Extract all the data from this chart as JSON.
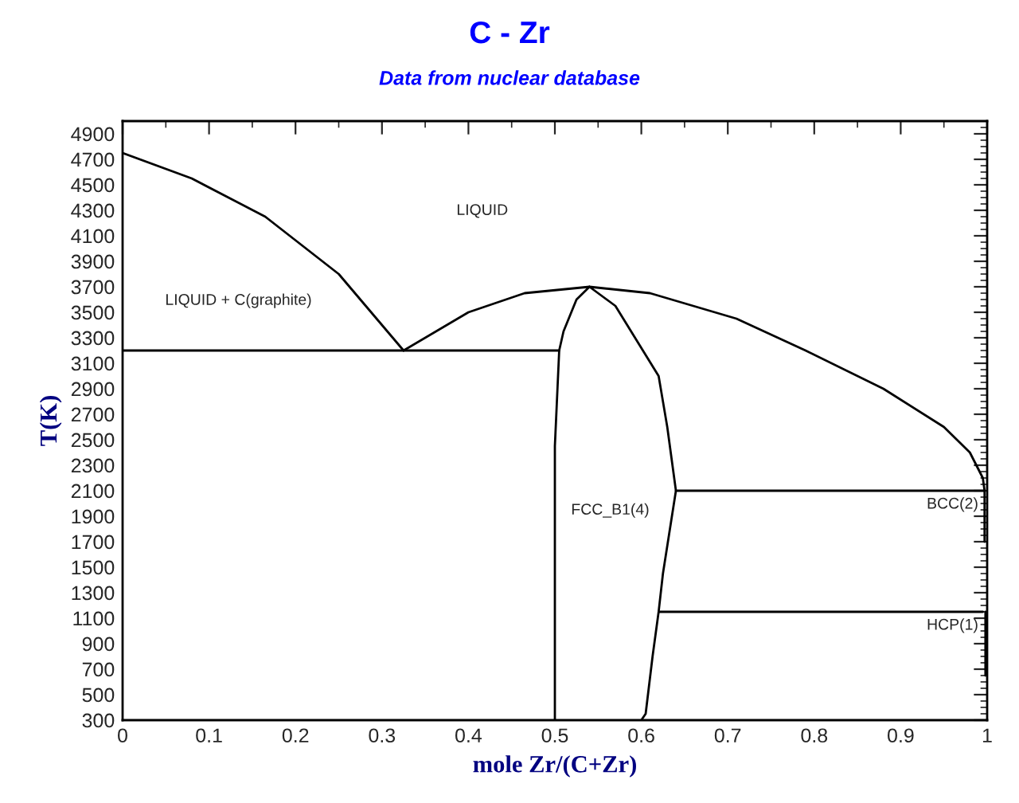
{
  "chart_data": {
    "type": "line",
    "title": "C - Zr",
    "subtitle": "Data from nuclear database",
    "xlabel": "mole Zr/(C+Zr)",
    "ylabel": "T(K)",
    "xlim": [
      0,
      1
    ],
    "ylim": [
      300,
      5000
    ],
    "xticks": [
      0,
      0.1,
      0.2,
      0.3,
      0.4,
      0.5,
      0.6,
      0.7,
      0.8,
      0.9,
      1
    ],
    "yticks": [
      300,
      500,
      700,
      900,
      1100,
      1300,
      1500,
      1700,
      1900,
      2100,
      2300,
      2500,
      2700,
      2900,
      3100,
      3300,
      3500,
      3700,
      3900,
      4100,
      4300,
      4500,
      4700,
      4900
    ],
    "grid": false,
    "legend": false,
    "marker": "none",
    "line_style": "solid",
    "series": [
      {
        "color": "#000000",
        "x": [
          0,
          0.08,
          0.165,
          0.25,
          0.325
        ],
        "values": [
          4750,
          4550,
          4250,
          3800,
          3200
        ]
      },
      {
        "color": "#000000",
        "x": [
          0.325,
          0.4,
          0.465,
          0.54,
          0.61,
          0.71,
          0.79,
          0.88,
          0.95,
          0.98,
          0.995,
          0.997,
          0.997
        ],
        "values": [
          3200,
          3500,
          3650,
          3700,
          3650,
          3450,
          3200,
          2900,
          2600,
          2400,
          2200,
          2100,
          1700
        ]
      },
      {
        "color": "#000000",
        "x": [
          0,
          0.505
        ],
        "values": [
          3200,
          3200
        ]
      },
      {
        "color": "#000000",
        "x": [
          0.5,
          0.5,
          0.505,
          0.51,
          0.525,
          0.54
        ],
        "values": [
          300,
          2450,
          3200,
          3350,
          3600,
          3700
        ]
      },
      {
        "color": "#000000",
        "x": [
          0.54,
          0.57,
          0.62,
          0.63,
          0.64,
          0.625,
          0.62,
          0.613,
          0.605,
          0.6
        ],
        "values": [
          3700,
          3550,
          3000,
          2600,
          2100,
          1450,
          1150,
          800,
          350,
          300
        ]
      },
      {
        "color": "#000000",
        "x": [
          0.64,
          0.997
        ],
        "values": [
          2100,
          2100
        ]
      },
      {
        "color": "#000000",
        "x": [
          0.62,
          0.995
        ],
        "values": [
          1150,
          1150
        ]
      },
      {
        "color": "#000000",
        "x": [
          0.998,
          0.998
        ],
        "values": [
          1150,
          650
        ]
      }
    ],
    "annotations": [
      "LIQUID",
      "LIQUID + C(graphite)",
      "FCC_B1(4)",
      {
        "text": "BCC(2)",
        "x": 1.0,
        "y": 2100
      },
      {
        "text": "HCP(1)",
        "x": 1.0,
        "y": 1150
      }
    ]
  }
}
